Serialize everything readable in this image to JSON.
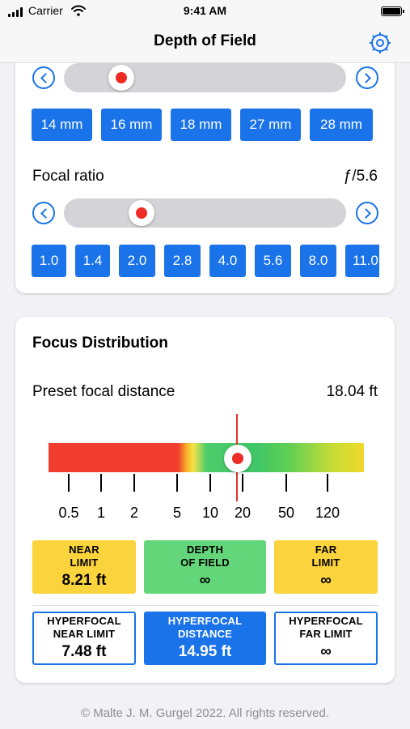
{
  "status": {
    "carrier": "Carrier",
    "time": "9:41 AM"
  },
  "nav": {
    "title": "Depth of Field",
    "settings_icon": "gear-icon"
  },
  "focal_length": {
    "slider_position": 0.17,
    "chips": [
      "14 mm",
      "16 mm",
      "18 mm",
      "27 mm",
      "28 mm"
    ]
  },
  "focal_ratio": {
    "label": "Focal ratio",
    "value": "ƒ/5.6",
    "slider_position": 0.25,
    "chips": [
      "1.0",
      "1.4",
      "2.0",
      "2.8",
      "4.0",
      "5.6",
      "8.0",
      "11.0"
    ]
  },
  "focus": {
    "heading": "Focus Distribution",
    "preset_label": "Preset focal distance",
    "preset_value": "18.04 ft",
    "scale_labels": [
      "0.5",
      "1",
      "2",
      "5",
      "10",
      "20",
      "50",
      "120"
    ],
    "near_limit": {
      "title1": "NEAR",
      "title2": "LIMIT",
      "value": "8.21 ft"
    },
    "depth_of_field": {
      "title1": "DEPTH",
      "title2": "OF FIELD",
      "value": "∞"
    },
    "far_limit": {
      "title1": "FAR",
      "title2": "LIMIT",
      "value": "∞"
    },
    "hyperfocal_near": {
      "title1": "HYPERFOCAL",
      "title2": "NEAR LIMIT",
      "value": "7.48 ft"
    },
    "hyperfocal_distance": {
      "title1": "HYPERFOCAL",
      "title2": "DISTANCE",
      "value": "14.95 ft"
    },
    "hyperfocal_far": {
      "title1": "HYPERFOCAL",
      "title2": "FAR LIMIT",
      "value": "∞"
    }
  },
  "colors": {
    "accent": "#1a73e8",
    "marker": "#ee2b24",
    "limit": "#fbd33c",
    "dof": "#63d67a"
  },
  "footer": "© Malte J. M. Gurgel 2022. All rights reserved."
}
